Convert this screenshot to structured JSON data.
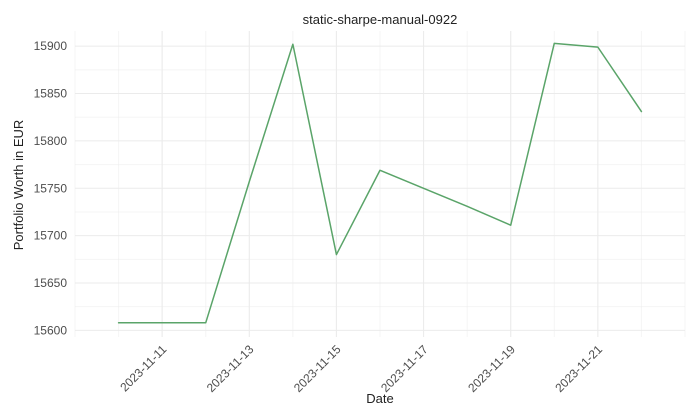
{
  "chart_data": {
    "type": "line",
    "title": "static-sharpe-manual-0922",
    "xlabel": "Date",
    "ylabel": "Portfolio Worth in EUR",
    "xlim": [
      "2023-11-09",
      "2023-11-23"
    ],
    "ylim": [
      15593,
      15916
    ],
    "x_ticks": [
      "2023-11-11",
      "2023-11-13",
      "2023-11-15",
      "2023-11-17",
      "2023-11-19",
      "2023-11-21"
    ],
    "y_ticks": [
      15600,
      15650,
      15700,
      15750,
      15800,
      15850,
      15900
    ],
    "grid": true,
    "legend": "none",
    "series": [
      {
        "color": "#5aa469",
        "x": [
          "2023-11-10",
          "2023-11-11",
          "2023-11-12",
          "2023-11-13",
          "2023-11-14",
          "2023-11-15",
          "2023-11-16",
          "2023-11-17",
          "2023-11-18",
          "2023-11-19",
          "2023-11-20",
          "2023-11-21",
          "2023-11-22"
        ],
        "values": [
          15608,
          15608,
          15608,
          15757,
          15902,
          15680,
          15769,
          15750,
          15731,
          15711,
          15903,
          15899,
          15831
        ]
      }
    ]
  }
}
